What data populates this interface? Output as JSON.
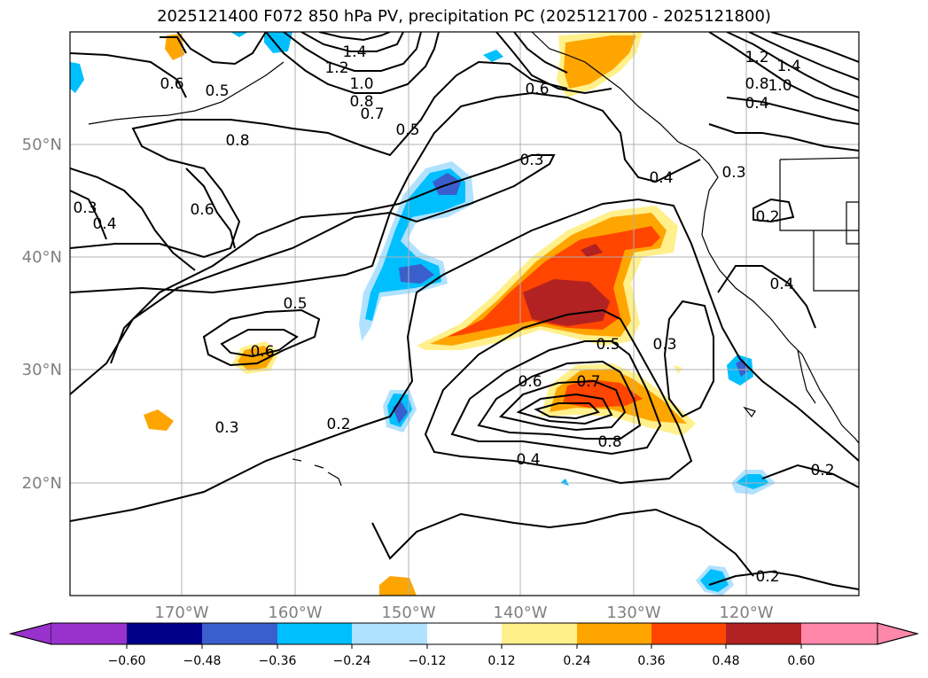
{
  "title": "2025121400 F072 850 hPa PV, precipitation PC (2025121700 - 2025121800)",
  "lat_labels": [
    "50°N",
    "40°N",
    "30°N",
    "20°N"
  ],
  "lon_labels": [
    "170°W",
    "160°W",
    "150°W",
    "140°W",
    "130°W",
    "120°W"
  ],
  "contour_labels": [
    "1.2",
    "1.4",
    "1.0",
    "0.6",
    "0.5",
    "0.8",
    "0.7",
    "0.5",
    "0.8",
    "0.3",
    "0.4",
    "0.6",
    "1.2",
    "1.4",
    "0.8",
    "1.0",
    "0.4",
    "0.3",
    "0.2",
    "0.3",
    "0.4",
    "0.6",
    "0.4",
    "0.5",
    "0.6",
    "0.3",
    "0.2",
    "0.5",
    "0.6",
    "0.7",
    "0.8",
    "0.4",
    "0.3",
    "0.2",
    "0.2"
  ],
  "colorbar": {
    "ticks": [
      "−0.60",
      "−0.48",
      "−0.36",
      "−0.24",
      "−0.12",
      "0.12",
      "0.24",
      "0.36",
      "0.48",
      "0.60"
    ],
    "colors": [
      "#9932cc",
      "#00008b",
      "#3a5fcd",
      "#00bfff",
      "#b0e2ff",
      "#ffffff",
      "#fff08c",
      "#ffa500",
      "#ff4500",
      "#b22222",
      "#ff88aa"
    ]
  }
}
